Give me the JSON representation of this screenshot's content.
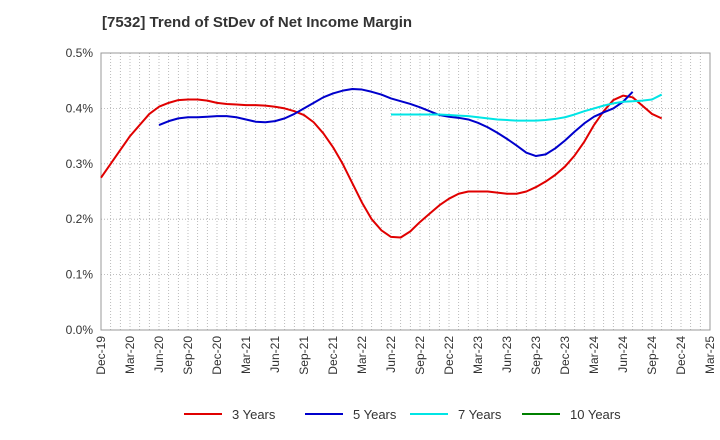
{
  "chart_data": {
    "type": "line",
    "title": "[7532]  Trend of StDev of Net Income Margin",
    "xlabel": "",
    "ylabel": "",
    "x_ticks": [
      "Dec-19",
      "Mar-20",
      "Jun-20",
      "Sep-20",
      "Dec-20",
      "Mar-21",
      "Jun-21",
      "Sep-21",
      "Dec-21",
      "Mar-22",
      "Jun-22",
      "Sep-22",
      "Dec-22",
      "Mar-23",
      "Jun-23",
      "Sep-23",
      "Dec-23",
      "Mar-24",
      "Jun-24",
      "Sep-24",
      "Dec-24",
      "Mar-25"
    ],
    "y_ticks": [
      "0.0%",
      "0.1%",
      "0.2%",
      "0.3%",
      "0.4%",
      "0.5%"
    ],
    "ylim": [
      0,
      0.5
    ],
    "y_unit": "%",
    "grid": "on, dotted, vertical every month",
    "legend_position": "bottom",
    "series": [
      {
        "name": "3 Years",
        "color": "#e00000",
        "start_index": 0,
        "values": [
          0.275,
          0.3,
          0.325,
          0.35,
          0.37,
          0.39,
          0.403,
          0.41,
          0.415,
          0.416,
          0.416,
          0.414,
          0.41,
          0.408,
          0.407,
          0.406,
          0.406,
          0.405,
          0.403,
          0.4,
          0.395,
          0.388,
          0.375,
          0.355,
          0.33,
          0.3,
          0.265,
          0.23,
          0.2,
          0.18,
          0.168,
          0.167,
          0.178,
          0.195,
          0.21,
          0.225,
          0.237,
          0.246,
          0.25,
          0.25,
          0.25,
          0.248,
          0.246,
          0.246,
          0.25,
          0.258,
          0.268,
          0.28,
          0.295,
          0.315,
          0.34,
          0.37,
          0.395,
          0.415,
          0.423,
          0.42,
          0.405,
          0.39,
          0.382
        ]
      },
      {
        "name": "5 Years",
        "color": "#0000cc",
        "start_index": 6,
        "values": [
          0.37,
          0.377,
          0.382,
          0.384,
          0.384,
          0.385,
          0.386,
          0.386,
          0.384,
          0.38,
          0.376,
          0.375,
          0.377,
          0.382,
          0.39,
          0.4,
          0.41,
          0.42,
          0.427,
          0.432,
          0.435,
          0.434,
          0.43,
          0.425,
          0.418,
          0.413,
          0.408,
          0.402,
          0.395,
          0.388,
          0.385,
          0.383,
          0.38,
          0.374,
          0.366,
          0.356,
          0.345,
          0.333,
          0.32,
          0.314,
          0.317,
          0.328,
          0.342,
          0.358,
          0.373,
          0.385,
          0.393,
          0.4,
          0.412,
          0.43
        ]
      },
      {
        "name": "7 Years",
        "color": "#00e5e5",
        "start_index": 30,
        "values": [
          0.389,
          0.389,
          0.389,
          0.389,
          0.389,
          0.389,
          0.388,
          0.387,
          0.386,
          0.384,
          0.382,
          0.38,
          0.379,
          0.378,
          0.378,
          0.378,
          0.379,
          0.381,
          0.384,
          0.389,
          0.395,
          0.4,
          0.405,
          0.409,
          0.412,
          0.413,
          0.414,
          0.416,
          0.425
        ]
      },
      {
        "name": "10 Years",
        "color": "#008000",
        "start_index": 0,
        "values": []
      }
    ]
  }
}
